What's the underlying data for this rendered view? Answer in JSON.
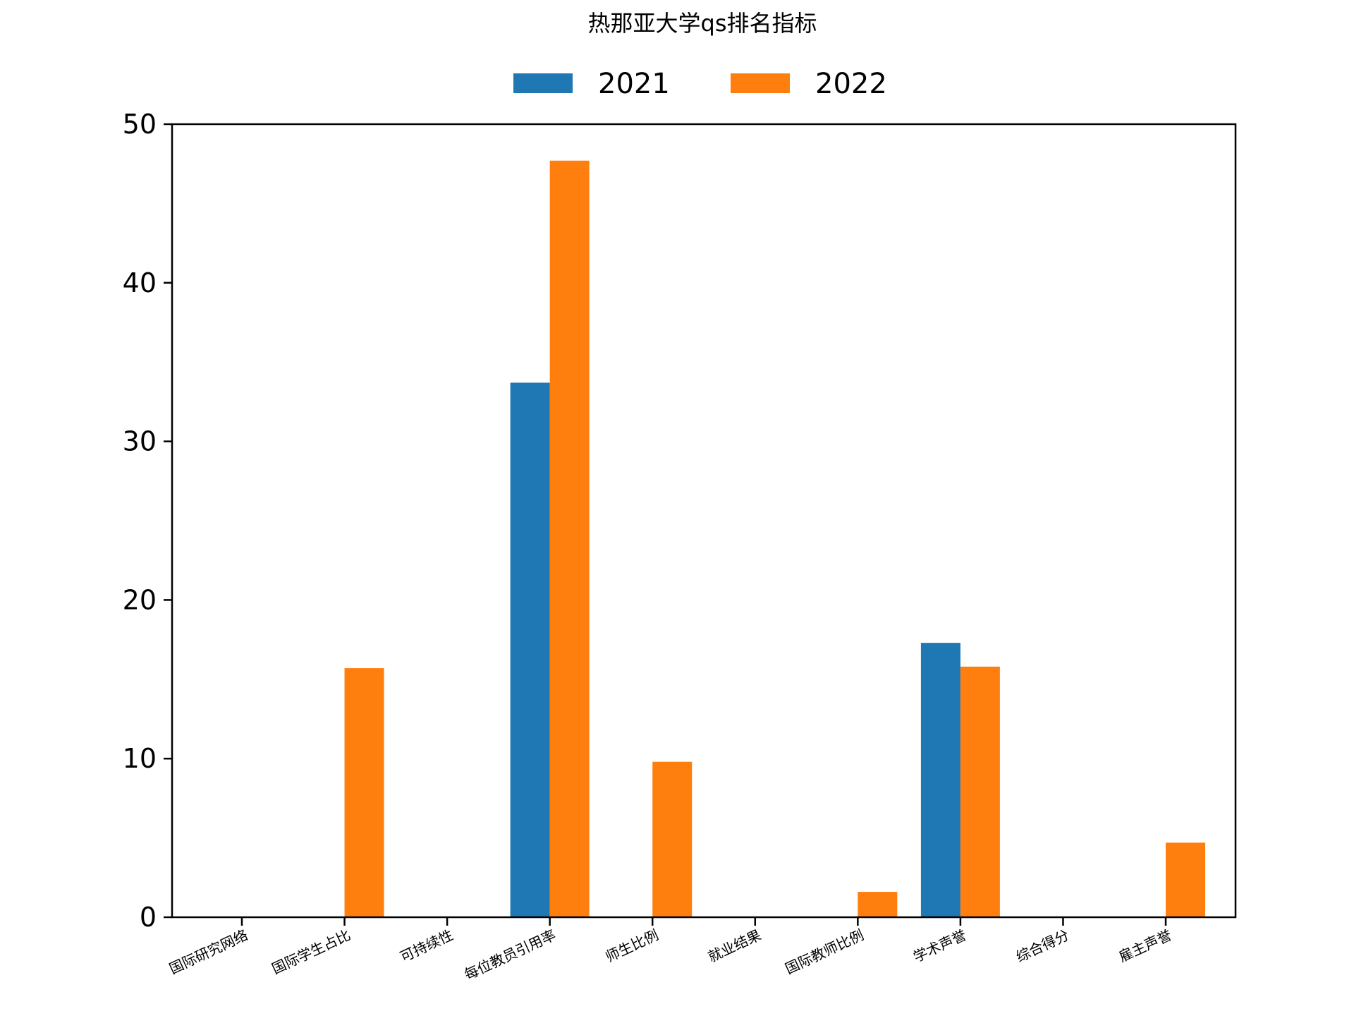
{
  "chart_data": {
    "type": "bar",
    "title": "热那亚大学qs排名指标",
    "xlabel": "",
    "ylabel": "",
    "ylim": [
      0,
      50
    ],
    "yticks": [
      0,
      10,
      20,
      30,
      40,
      50
    ],
    "grid": false,
    "legend_position": "top",
    "categories": [
      "国际研究网络",
      "国际学生占比",
      "可持续性",
      "每位教员引用率",
      "师生比例",
      "就业结果",
      "国际教师比例",
      "学术声誉",
      "综合得分",
      "雇主声誉"
    ],
    "series": [
      {
        "name": "2021",
        "color": "#1f77b4",
        "values": [
          0,
          0,
          0,
          33.7,
          0,
          0,
          0,
          17.3,
          0,
          0
        ]
      },
      {
        "name": "2022",
        "color": "#ff7f0e",
        "values": [
          0,
          15.7,
          0,
          47.7,
          9.8,
          0,
          1.6,
          15.8,
          0,
          4.7
        ]
      }
    ]
  }
}
